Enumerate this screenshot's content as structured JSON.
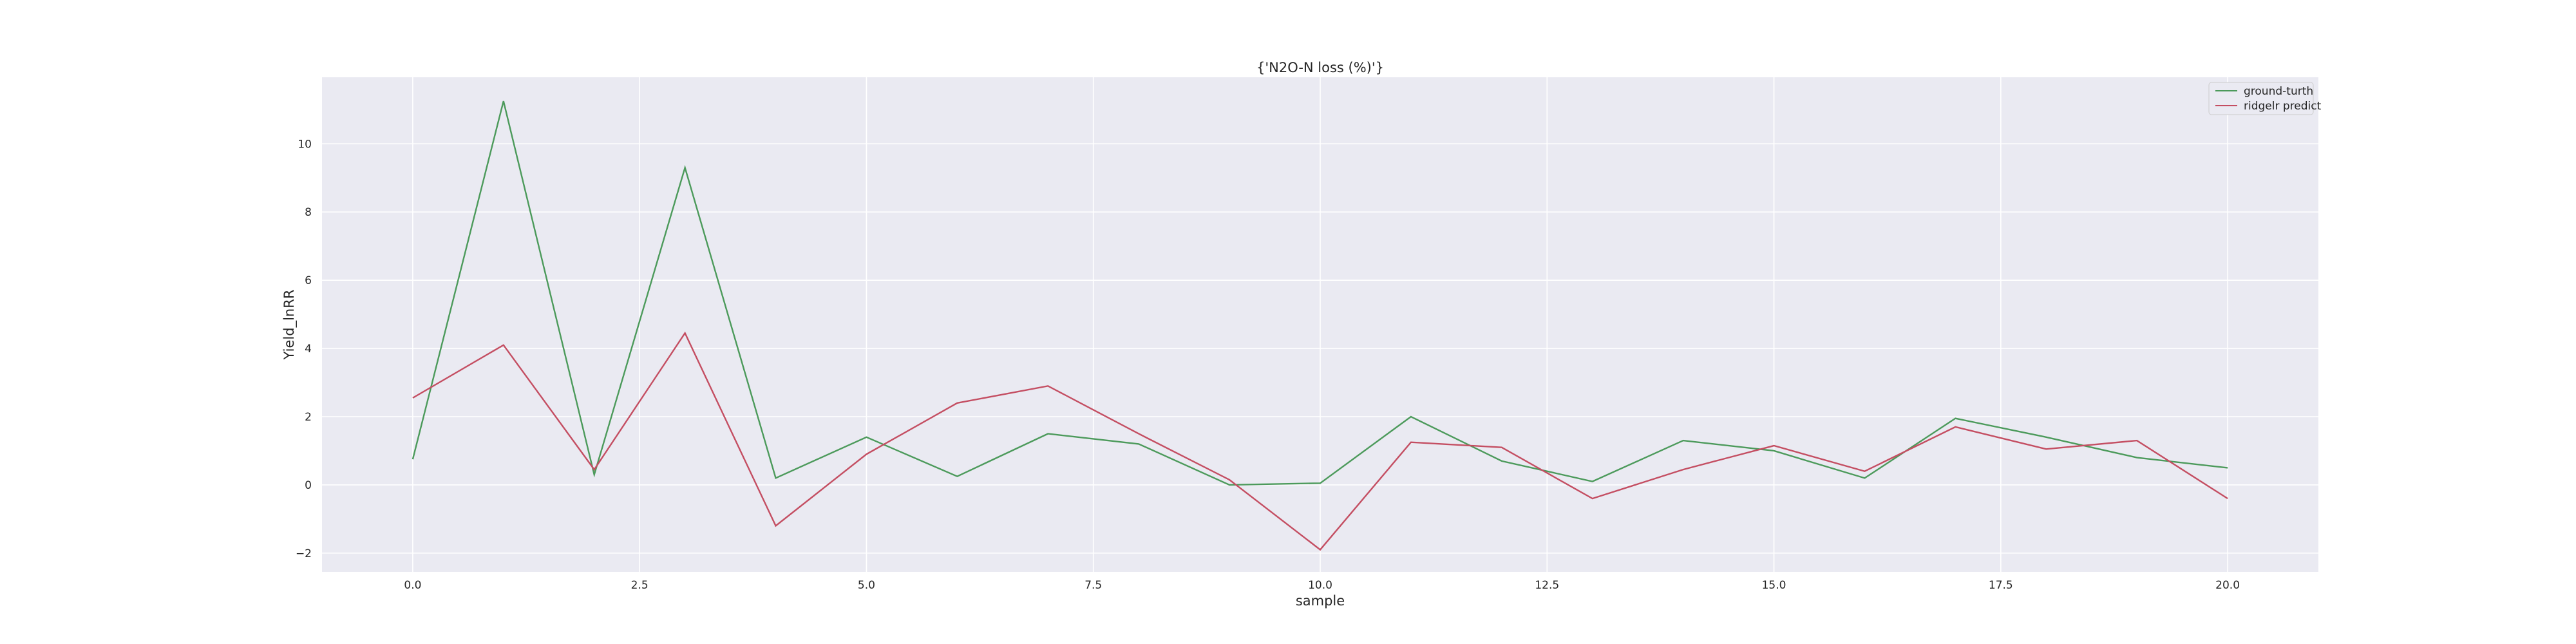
{
  "chart_data": {
    "type": "line",
    "title": "{'N2O-N loss (%)'}",
    "xlabel": "sample",
    "ylabel": "Yield_lnRR",
    "xlim": [
      -1.0,
      21.0
    ],
    "ylim": [
      -2.55,
      11.95
    ],
    "xticks": [
      0.0,
      2.5,
      5.0,
      7.5,
      10.0,
      12.5,
      15.0,
      17.5,
      20.0
    ],
    "xtick_labels": [
      "0.0",
      "2.5",
      "5.0",
      "7.5",
      "10.0",
      "12.5",
      "15.0",
      "17.5",
      "20.0"
    ],
    "yticks": [
      -2,
      0,
      2,
      4,
      6,
      8,
      10
    ],
    "ytick_labels": [
      "−2",
      "0",
      "2",
      "4",
      "6",
      "8",
      "10"
    ],
    "grid": true,
    "legend_position": "top-right",
    "x": [
      0,
      1,
      2,
      3,
      4,
      5,
      6,
      7,
      8,
      9,
      10,
      11,
      12,
      13,
      14,
      15,
      16,
      17,
      18,
      19,
      20
    ],
    "series": [
      {
        "name": "ground-turth",
        "color": "#4c9a5b",
        "values": [
          0.75,
          11.25,
          0.3,
          9.3,
          0.2,
          1.4,
          0.25,
          1.5,
          1.2,
          0.0,
          0.05,
          2.0,
          0.7,
          0.1,
          1.3,
          1.0,
          0.2,
          1.95,
          1.4,
          0.8,
          0.5
        ]
      },
      {
        "name": "ridgelr predict",
        "color": "#c44e62",
        "values": [
          2.55,
          4.1,
          0.45,
          4.45,
          -1.2,
          0.9,
          2.4,
          2.9,
          1.5,
          0.15,
          -1.9,
          1.25,
          1.1,
          -0.4,
          0.45,
          1.15,
          0.4,
          1.7,
          1.05,
          1.3,
          -0.4
        ]
      }
    ]
  },
  "colors": {
    "plot_background": "#eaeaf2",
    "grid": "#ffffff",
    "text": "#262626"
  }
}
